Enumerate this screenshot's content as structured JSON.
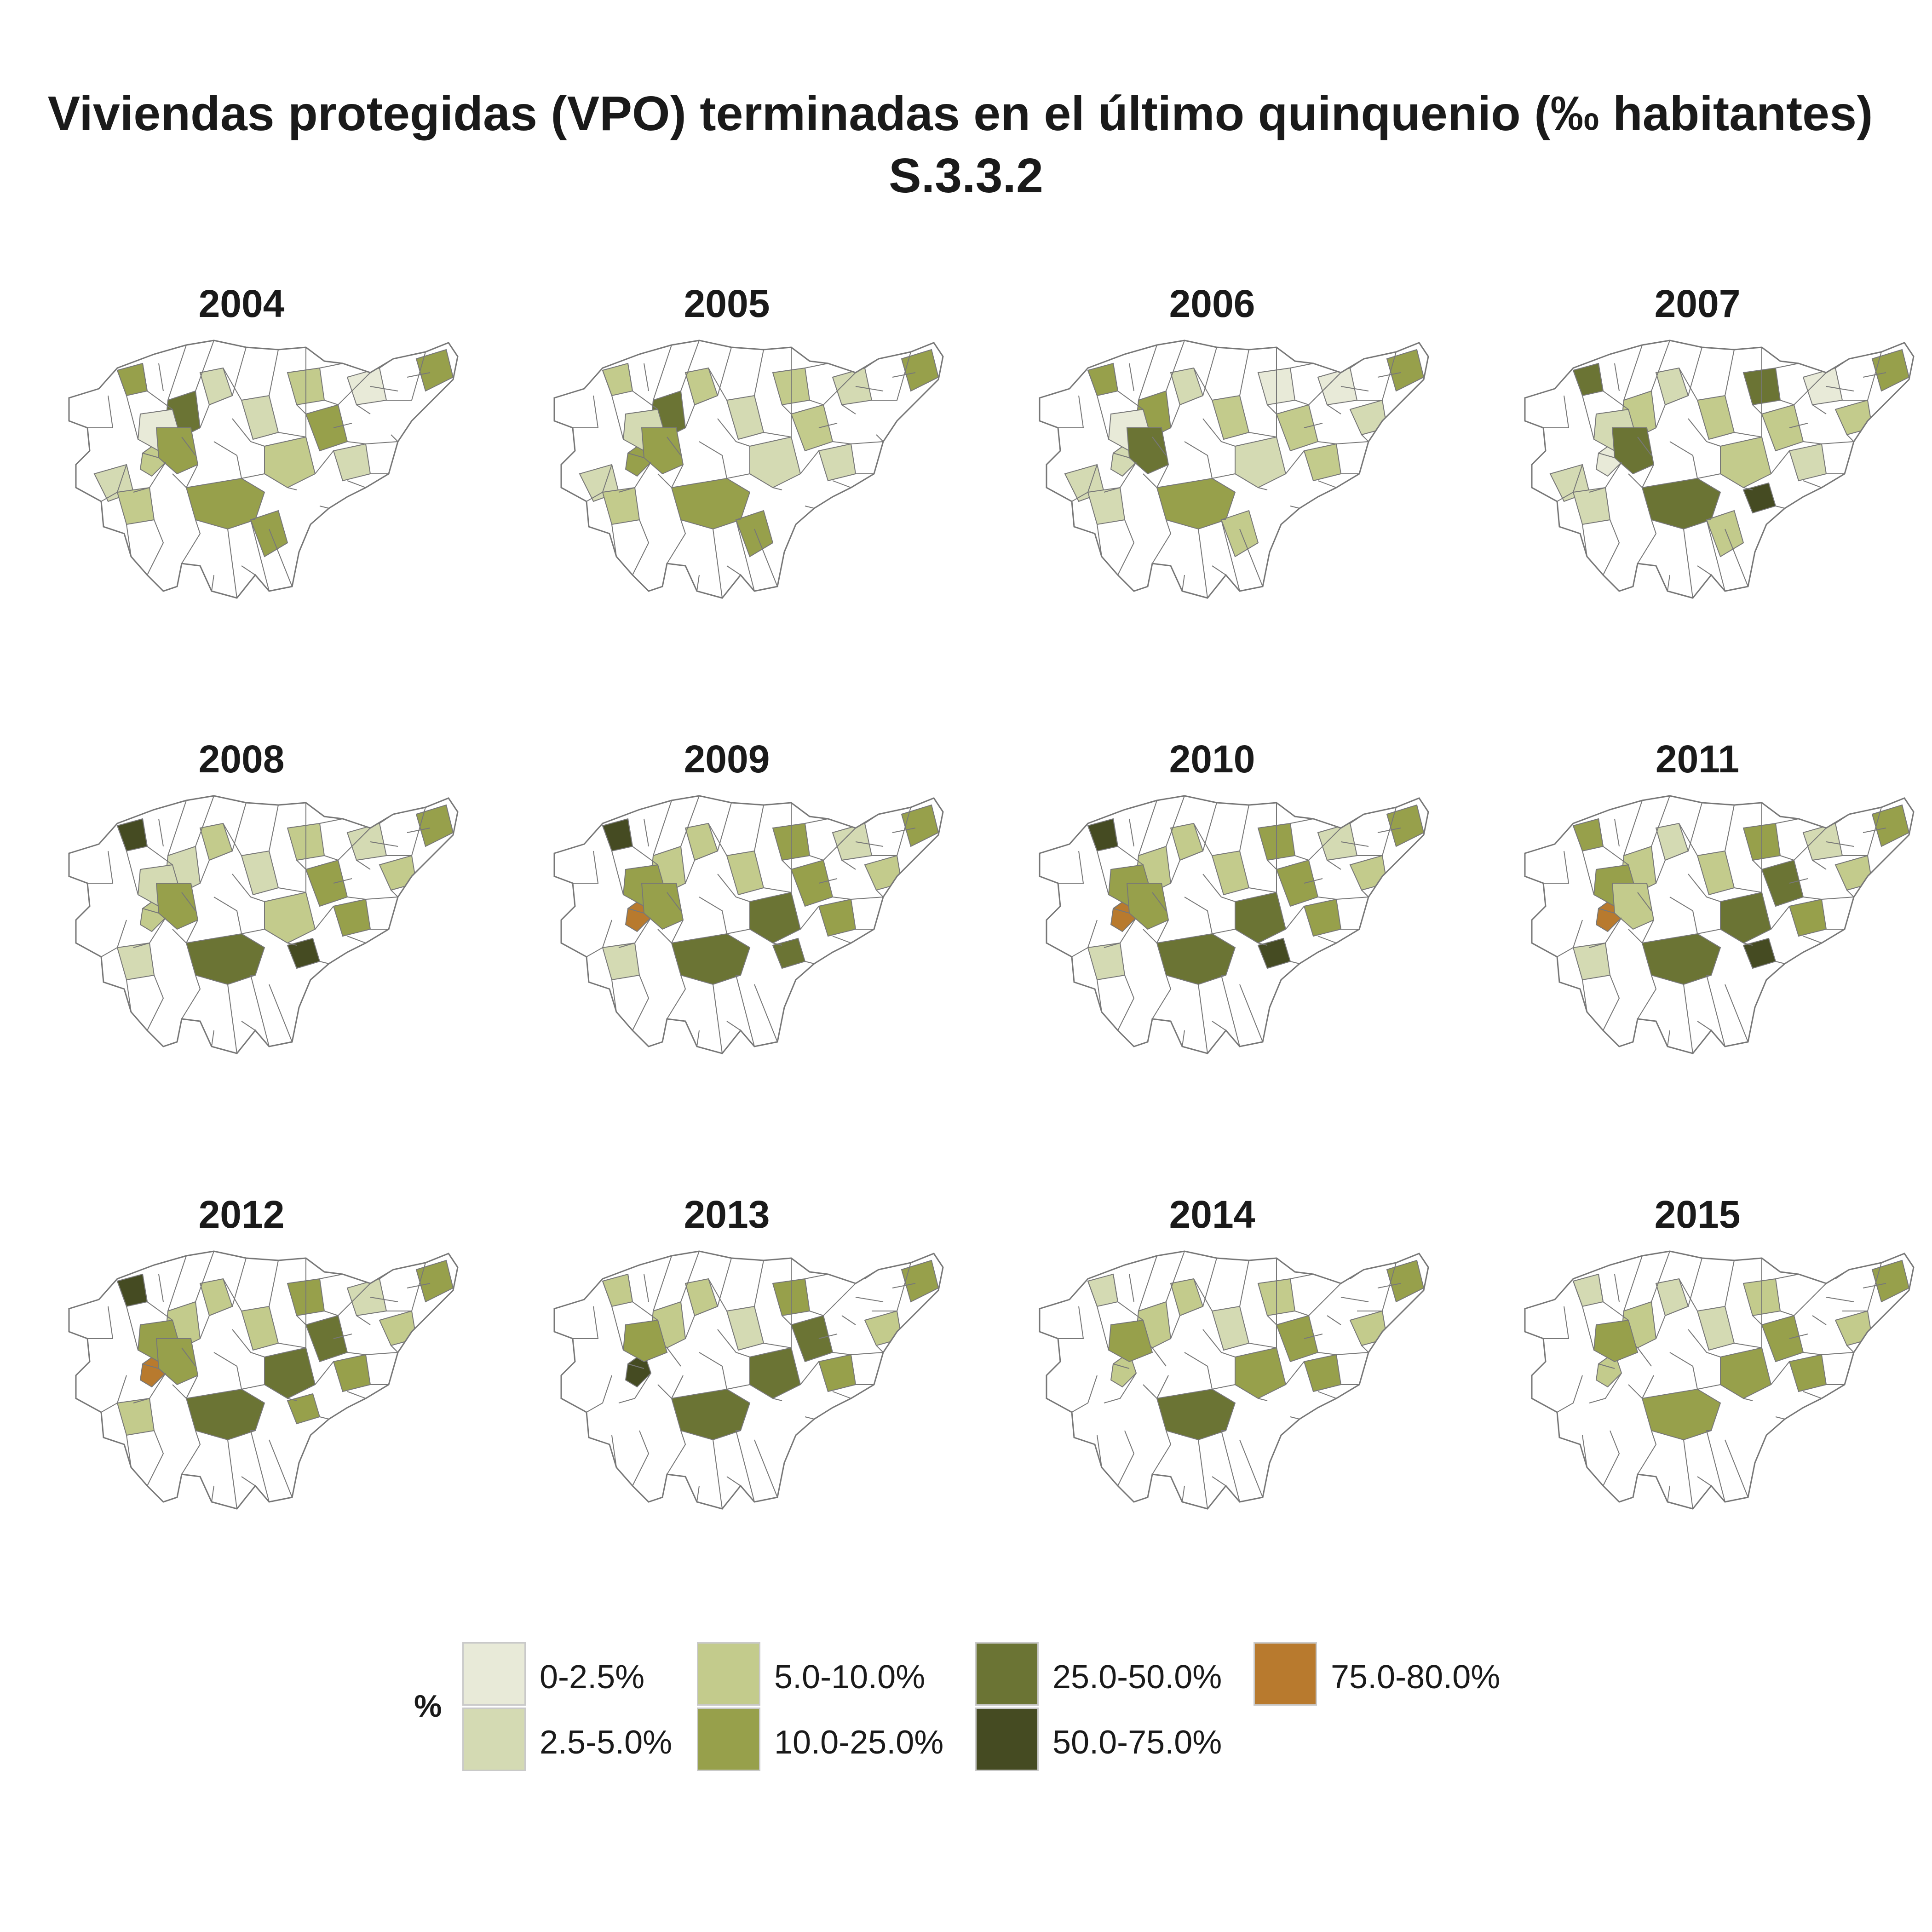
{
  "title": {
    "line1": "Viviendas protegidas (VPO) terminadas en el último quinquenio (‰ habitantes)",
    "line2": "S.3.3.2"
  },
  "legend": {
    "title": "%",
    "items": [
      {
        "label": "0-2.5%",
        "color": "#e8ead8"
      },
      {
        "label": "2.5-5.0%",
        "color": "#d4dab3"
      },
      {
        "label": "5.0-10.0%",
        "color": "#c3cb8c"
      },
      {
        "label": "10.0-25.0%",
        "color": "#97a04b"
      },
      {
        "label": "25.0-50.0%",
        "color": "#6b7434"
      },
      {
        "label": "50.0-75.0%",
        "color": "#454b22"
      },
      {
        "label": "75.0-80.0%",
        "color": "#b87a2e"
      }
    ]
  },
  "map_style": {
    "outline_color": "#777777",
    "empty_color": "#ffffff"
  },
  "panels": [
    {
      "year": "2004",
      "fills": {
        "A": 4,
        "B": 3,
        "C": 5,
        "D": 2,
        "E": 1,
        "F": 4,
        "G": 4,
        "H": 2,
        "I": 3,
        "J": 3,
        "K": 4,
        "L": 1,
        "M": 2,
        "N": 0,
        "O": 4,
        "P": 0,
        "Q": 0,
        "R": 2,
        "S": 3,
        "T": 4
      }
    },
    {
      "year": "2005",
      "fills": {
        "A": 3,
        "B": 4,
        "C": 5,
        "D": 3,
        "E": 2,
        "F": 4,
        "G": 4,
        "H": 2,
        "I": 2,
        "J": 3,
        "K": 3,
        "L": 2,
        "M": 2,
        "N": 0,
        "O": 4,
        "P": 0,
        "Q": 0,
        "R": 2,
        "S": 3,
        "T": 4
      }
    },
    {
      "year": "2006",
      "fills": {
        "A": 4,
        "B": 2,
        "C": 4,
        "D": 2,
        "E": 1,
        "F": 5,
        "G": 4,
        "H": 3,
        "I": 2,
        "J": 1,
        "K": 3,
        "L": 1,
        "M": 3,
        "N": 2,
        "O": 4,
        "P": 0,
        "Q": 0,
        "R": 2,
        "S": 2,
        "T": 3
      }
    },
    {
      "year": "2007",
      "fills": {
        "A": 5,
        "B": 1,
        "C": 3,
        "D": 2,
        "E": 2,
        "F": 5,
        "G": 5,
        "H": 3,
        "I": 3,
        "J": 5,
        "K": 3,
        "L": 1,
        "M": 2,
        "N": 3,
        "O": 4,
        "P": 6,
        "Q": 0,
        "R": 2,
        "S": 2,
        "T": 3
      }
    },
    {
      "year": "2008",
      "fills": {
        "A": 6,
        "B": 3,
        "C": 2,
        "D": 3,
        "E": 2,
        "F": 4,
        "G": 5,
        "H": 2,
        "I": 3,
        "J": 3,
        "K": 4,
        "L": 2,
        "M": 4,
        "N": 3,
        "O": 4,
        "P": 6,
        "Q": 0,
        "R": 0,
        "S": 2,
        "T": 0
      }
    },
    {
      "year": "2009",
      "fills": {
        "A": 6,
        "B": 7,
        "C": 3,
        "D": 3,
        "E": 4,
        "F": 4,
        "G": 5,
        "H": 3,
        "I": 5,
        "J": 4,
        "K": 4,
        "L": 2,
        "M": 4,
        "N": 3,
        "O": 4,
        "P": 5,
        "Q": 0,
        "R": 0,
        "S": 2,
        "T": 0
      }
    },
    {
      "year": "2010",
      "fills": {
        "A": 6,
        "B": 7,
        "C": 3,
        "D": 3,
        "E": 4,
        "F": 4,
        "G": 5,
        "H": 3,
        "I": 5,
        "J": 4,
        "K": 4,
        "L": 2,
        "M": 4,
        "N": 3,
        "O": 4,
        "P": 6,
        "Q": 0,
        "R": 0,
        "S": 2,
        "T": 0
      }
    },
    {
      "year": "2011",
      "fills": {
        "A": 4,
        "B": 7,
        "C": 3,
        "D": 2,
        "E": 4,
        "F": 3,
        "G": 5,
        "H": 3,
        "I": 5,
        "J": 4,
        "K": 5,
        "L": 2,
        "M": 4,
        "N": 3,
        "O": 4,
        "P": 6,
        "Q": 0,
        "R": 0,
        "S": 2,
        "T": 0
      }
    },
    {
      "year": "2012",
      "fills": {
        "A": 6,
        "B": 7,
        "C": 3,
        "D": 3,
        "E": 4,
        "F": 4,
        "G": 5,
        "H": 3,
        "I": 5,
        "J": 4,
        "K": 5,
        "L": 2,
        "M": 4,
        "N": 3,
        "O": 4,
        "P": 4,
        "Q": 0,
        "R": 0,
        "S": 3,
        "T": 0
      }
    },
    {
      "year": "2013",
      "fills": {
        "A": 3,
        "B": 6,
        "C": 3,
        "D": 3,
        "E": 4,
        "F": 0,
        "G": 5,
        "H": 2,
        "I": 5,
        "J": 4,
        "K": 5,
        "L": 0,
        "M": 4,
        "N": 3,
        "O": 4,
        "P": 0,
        "Q": 0,
        "R": 0,
        "S": 0,
        "T": 0
      }
    },
    {
      "year": "2014",
      "fills": {
        "A": 2,
        "B": 3,
        "C": 3,
        "D": 3,
        "E": 4,
        "F": 0,
        "G": 5,
        "H": 2,
        "I": 4,
        "J": 3,
        "K": 4,
        "L": 0,
        "M": 4,
        "N": 3,
        "O": 4,
        "P": 0,
        "Q": 0,
        "R": 0,
        "S": 0,
        "T": 0
      }
    },
    {
      "year": "2015",
      "fills": {
        "A": 2,
        "B": 3,
        "C": 3,
        "D": 2,
        "E": 4,
        "F": 0,
        "G": 4,
        "H": 2,
        "I": 4,
        "J": 3,
        "K": 4,
        "L": 0,
        "M": 4,
        "N": 3,
        "O": 4,
        "P": 0,
        "Q": 0,
        "R": 0,
        "S": 0,
        "T": 0
      }
    }
  ]
}
